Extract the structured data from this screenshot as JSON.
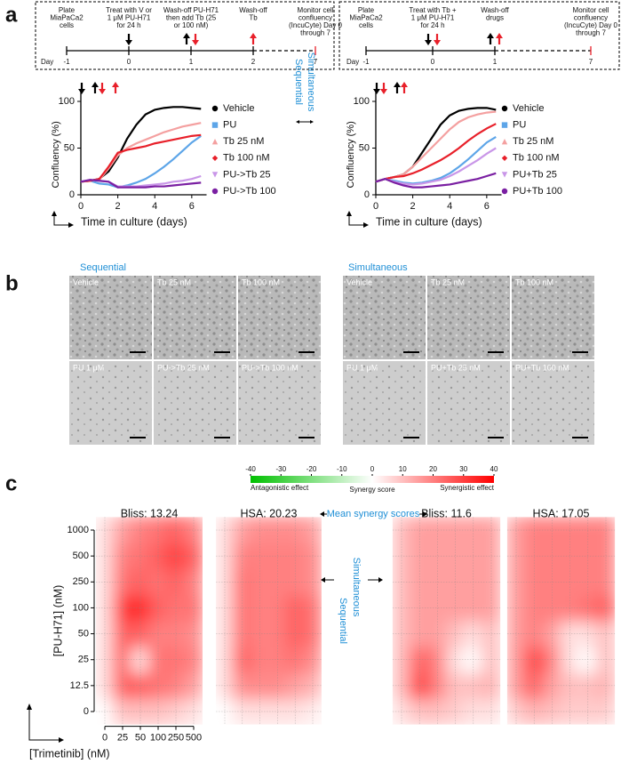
{
  "panel_labels": [
    "a",
    "b",
    "c"
  ],
  "timelines": [
    {
      "day_label": "Day",
      "events": [
        {
          "day": "-1",
          "lines": [
            "Plate",
            "MiaPaCa2",
            "cells"
          ]
        },
        {
          "day": "0",
          "lines": [
            "Treat with V or",
            "1 μM PU-H71",
            "for 24 h"
          ]
        },
        {
          "day": "1",
          "lines": [
            "Wash-off PU-H71",
            "then add Tb (25",
            "or 100 nM)"
          ]
        },
        {
          "day": "2",
          "lines": [
            "Wash-off",
            "Tb"
          ]
        },
        {
          "day": "7",
          "lines": [
            "Monitor cell",
            "confluency",
            "(IncuCyte) Day 0",
            "through 7"
          ]
        }
      ]
    },
    {
      "day_label": "Day",
      "events": [
        {
          "day": "-1",
          "lines": [
            "Plate",
            "MiaPaCa2",
            "cells"
          ]
        },
        {
          "day": "0",
          "lines": [
            "Treat with Tb +",
            "1 μM PU-H71",
            "for 24 h"
          ]
        },
        {
          "day": "1",
          "lines": [
            "Wash-off",
            "drugs"
          ]
        },
        {
          "day": "7",
          "lines": [
            "Monitor cell",
            "confluency",
            "(IncuCyte) Day 0",
            "through 7"
          ]
        }
      ]
    }
  ],
  "a_middle_labels": [
    "Simultaneous",
    "Sequential"
  ],
  "micrographs": [
    {
      "title": "Sequential",
      "tiles": [
        "Vehicle",
        "Tb 25 nM",
        "Tb 100 nM",
        "PU 1 μM",
        "PU->Tb 25 nM",
        "PU->Tb 100 nM"
      ]
    },
    {
      "title": "Simultaneous",
      "tiles": [
        "Vehicle",
        "Tb 25 nM",
        "Tb 100 nM",
        "PU 1 μM",
        "PU+Tb 25 nM",
        "PU+Tb 100 nM"
      ]
    }
  ],
  "colorbar": {
    "ticks": [
      -40,
      -30,
      -20,
      -10,
      0,
      10,
      20,
      30,
      40
    ],
    "label": "Synergy score",
    "left_label": "Antagonistic effect",
    "right_label": "Synergistic effect",
    "low_color": "#00c000",
    "mid_color": "#ffffff",
    "high_color": "#ff0000"
  },
  "mean_label": "Mean synergy scores",
  "c_middle_labels": [
    "Sequential",
    "Simultaneous"
  ],
  "chart_data": [
    {
      "type": "line",
      "ylabel": "Confluency (%)",
      "xlabel": "Time in culture (days)",
      "x": [
        0,
        0.5,
        1,
        1.5,
        2,
        2.5,
        3,
        3.5,
        4,
        4.5,
        5,
        5.5,
        6,
        6.5
      ],
      "xlim": [
        0,
        6.8
      ],
      "xticks": [
        0,
        2,
        4,
        6
      ],
      "ylim": [
        0,
        105
      ],
      "yticks": [
        0,
        50,
        100
      ],
      "series": [
        {
          "name": "Vehicle",
          "color": "#000000",
          "marker": "circle",
          "values": [
            14,
            15,
            17,
            25,
            40,
            60,
            75,
            86,
            91,
            93,
            94,
            94,
            93,
            92
          ]
        },
        {
          "name": "PU",
          "color": "#5da5e8",
          "marker": "square",
          "values": [
            14,
            15,
            12,
            11,
            8,
            10,
            13,
            17,
            23,
            30,
            38,
            47,
            56,
            63
          ]
        },
        {
          "name": "Tb 25 nM",
          "color": "#f4a0a0",
          "marker": "triangle",
          "values": [
            14,
            15,
            16,
            28,
            42,
            50,
            55,
            59,
            63,
            67,
            70,
            73,
            75,
            77
          ]
        },
        {
          "name": "Tb 100 nM",
          "color": "#e8202a",
          "marker": "diamond",
          "values": [
            14,
            15,
            17,
            30,
            45,
            48,
            50,
            52,
            55,
            57,
            59,
            61,
            63,
            64
          ]
        },
        {
          "name": "PU->Tb 25",
          "color": "#c996e8",
          "marker": "triangle-down",
          "values": [
            14,
            16,
            15,
            14,
            9,
            9,
            9,
            10,
            11,
            12,
            14,
            15,
            17,
            20
          ]
        },
        {
          "name": "PU->Tb 100",
          "color": "#7a1fa2",
          "marker": "circle",
          "values": [
            14,
            16,
            15,
            14,
            8,
            8,
            8,
            8,
            9,
            9,
            10,
            11,
            12,
            13
          ]
        }
      ]
    },
    {
      "type": "line",
      "ylabel": "Confluency (%)",
      "xlabel": "Time in culture (days)",
      "x": [
        0,
        0.5,
        1,
        1.5,
        2,
        2.5,
        3,
        3.5,
        4,
        4.5,
        5,
        5.5,
        6,
        6.5
      ],
      "xlim": [
        0,
        6.8
      ],
      "xticks": [
        0,
        2,
        4,
        6
      ],
      "ylim": [
        0,
        105
      ],
      "yticks": [
        0,
        50,
        100
      ],
      "series": [
        {
          "name": "Vehicle",
          "color": "#000000",
          "marker": "circle",
          "values": [
            14,
            17,
            19,
            22,
            30,
            45,
            60,
            75,
            85,
            90,
            92,
            93,
            93,
            91
          ]
        },
        {
          "name": "PU",
          "color": "#5da5e8",
          "marker": "square",
          "values": [
            14,
            17,
            15,
            13,
            12,
            13,
            15,
            18,
            23,
            30,
            38,
            47,
            56,
            62
          ]
        },
        {
          "name": "Tb 25 nM",
          "color": "#f4a0a0",
          "marker": "triangle",
          "values": [
            14,
            17,
            19,
            22,
            30,
            40,
            50,
            60,
            70,
            78,
            83,
            86,
            88,
            89
          ]
        },
        {
          "name": "Tb 100 nM",
          "color": "#e8202a",
          "marker": "diamond",
          "values": [
            14,
            17,
            19,
            20,
            23,
            27,
            32,
            37,
            43,
            50,
            58,
            65,
            71,
            76
          ]
        },
        {
          "name": "PU+Tb 25",
          "color": "#c996e8",
          "marker": "triangle-down",
          "values": [
            14,
            17,
            14,
            12,
            11,
            12,
            14,
            16,
            20,
            25,
            31,
            37,
            44,
            50
          ]
        },
        {
          "name": "PU+Tb 100",
          "color": "#7a1fa2",
          "marker": "circle",
          "values": [
            14,
            17,
            13,
            10,
            8,
            8,
            9,
            10,
            11,
            13,
            15,
            17,
            20,
            23
          ]
        }
      ]
    },
    {
      "type": "heatmap",
      "title": "Bliss: 13.24",
      "ylabel": "[PU-H71] (nM)",
      "xlabel": "[Trimetinib] (nM)",
      "x_categories": [
        "0",
        "25",
        "50",
        "100",
        "250",
        "500"
      ],
      "y_categories": [
        "0",
        "12.5",
        "25",
        "50",
        "100",
        "250",
        "500",
        "1000"
      ],
      "values": [
        [
          0,
          10,
          10,
          10,
          8,
          5
        ],
        [
          5,
          25,
          25,
          22,
          20,
          15
        ],
        [
          5,
          25,
          5,
          22,
          22,
          20
        ],
        [
          5,
          25,
          25,
          20,
          20,
          18
        ],
        [
          5,
          30,
          35,
          25,
          22,
          22
        ],
        [
          5,
          22,
          25,
          22,
          25,
          20
        ],
        [
          5,
          20,
          22,
          25,
          30,
          25
        ],
        [
          5,
          15,
          20,
          22,
          25,
          20
        ]
      ]
    },
    {
      "type": "heatmap",
      "title": "HSA: 20.23",
      "values": [
        [
          0,
          5,
          5,
          5,
          5,
          3
        ],
        [
          5,
          18,
          18,
          18,
          15,
          12
        ],
        [
          5,
          25,
          20,
          20,
          22,
          18
        ],
        [
          5,
          22,
          20,
          20,
          25,
          22
        ],
        [
          5,
          22,
          20,
          20,
          25,
          22
        ],
        [
          5,
          22,
          20,
          20,
          20,
          18
        ],
        [
          5,
          20,
          20,
          20,
          20,
          18
        ],
        [
          5,
          15,
          18,
          18,
          18,
          15
        ]
      ]
    },
    {
      "type": "heatmap",
      "title": "Bliss: 11.6",
      "values": [
        [
          5,
          10,
          10,
          8,
          5,
          5
        ],
        [
          10,
          30,
          20,
          10,
          10,
          12
        ],
        [
          10,
          25,
          20,
          5,
          0,
          10
        ],
        [
          10,
          15,
          15,
          10,
          5,
          10
        ],
        [
          10,
          15,
          15,
          15,
          15,
          15
        ],
        [
          10,
          15,
          15,
          15,
          15,
          15
        ],
        [
          10,
          15,
          15,
          15,
          15,
          15
        ],
        [
          10,
          15,
          15,
          15,
          15,
          15
        ]
      ]
    },
    {
      "type": "heatmap",
      "title": "HSA: 17.05",
      "values": [
        [
          8,
          12,
          10,
          8,
          8,
          8
        ],
        [
          15,
          25,
          15,
          10,
          10,
          12
        ],
        [
          15,
          30,
          20,
          5,
          0,
          10
        ],
        [
          15,
          20,
          15,
          5,
          5,
          10
        ],
        [
          15,
          20,
          20,
          20,
          22,
          25
        ],
        [
          15,
          20,
          20,
          20,
          20,
          20
        ],
        [
          15,
          20,
          20,
          20,
          20,
          20
        ],
        [
          15,
          20,
          20,
          20,
          20,
          20
        ]
      ]
    }
  ]
}
